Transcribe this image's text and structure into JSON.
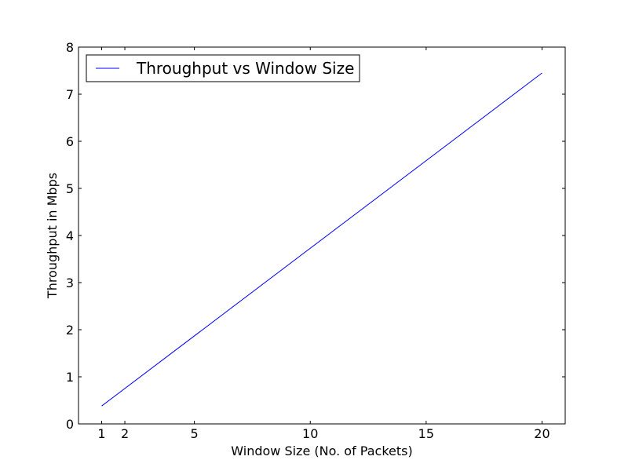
{
  "chart_data": {
    "type": "line",
    "title": "",
    "xlabel": "Window Size (No. of Packets)",
    "ylabel": "Throughput in Mbps",
    "xlim": [
      0,
      21
    ],
    "ylim": [
      0,
      8
    ],
    "xticks": [
      1,
      2,
      5,
      10,
      15,
      20
    ],
    "yticks": [
      0,
      1,
      2,
      3,
      4,
      5,
      6,
      7,
      8
    ],
    "grid": false,
    "legend_position": "top-left",
    "series": [
      {
        "name": "Throughput vs Window Size",
        "color": "#0000ff",
        "x": [
          1,
          20
        ],
        "y": [
          0.38,
          7.45
        ]
      }
    ]
  }
}
